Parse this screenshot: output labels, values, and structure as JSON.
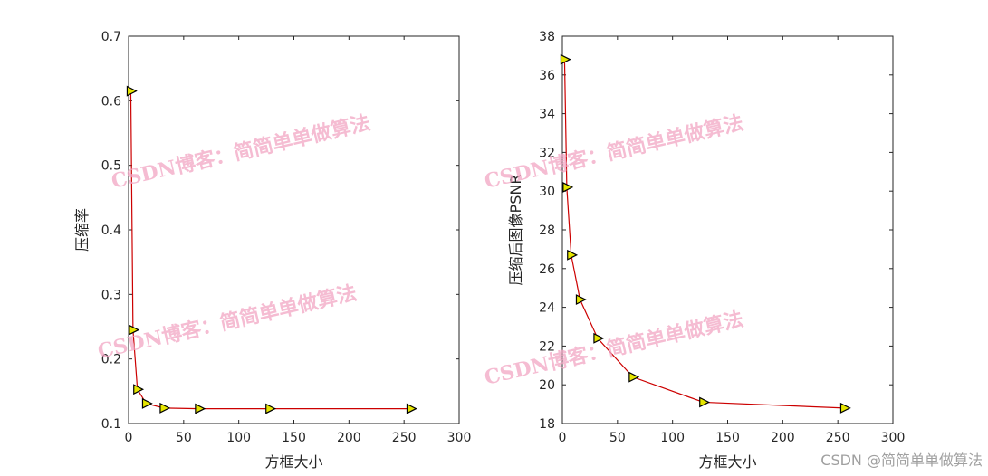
{
  "colors": {
    "line": "#cc0000",
    "marker_fill": "#e6e600",
    "marker_edge": "#000000",
    "watermark": "#f2a6c4",
    "axes": "#262626"
  },
  "watermark_text": "CSDN博客：简简单单做算法",
  "footer_text": "CSDN @简简单单做算法",
  "chart_data": [
    {
      "type": "line",
      "xlabel": "方框大小",
      "ylabel": "压缩率",
      "xlim": [
        0,
        300
      ],
      "ylim": [
        0.1,
        0.7
      ],
      "xticks": [
        0,
        50,
        100,
        150,
        200,
        250,
        300
      ],
      "yticks": [
        0.1,
        0.2,
        0.3,
        0.4,
        0.5,
        0.6,
        0.7
      ],
      "xtick_labels": [
        "0",
        "50",
        "100",
        "150",
        "200",
        "250",
        "300"
      ],
      "ytick_labels": [
        "0.1",
        "0.2",
        "0.3",
        "0.4",
        "0.5",
        "0.6",
        "0.7"
      ],
      "marker": "triangle-right",
      "grid": false,
      "x": [
        2,
        4,
        8,
        16,
        32,
        64,
        128,
        256
      ],
      "y": [
        0.615,
        0.245,
        0.153,
        0.131,
        0.124,
        0.123,
        0.123,
        0.123
      ]
    },
    {
      "type": "line",
      "xlabel": "方框大小",
      "ylabel": "压缩后图像PSNR",
      "xlim": [
        0,
        300
      ],
      "ylim": [
        18,
        38
      ],
      "xticks": [
        0,
        50,
        100,
        150,
        200,
        250,
        300
      ],
      "yticks": [
        18,
        20,
        22,
        24,
        26,
        28,
        30,
        32,
        34,
        36,
        38
      ],
      "xtick_labels": [
        "0",
        "50",
        "100",
        "150",
        "200",
        "250",
        "300"
      ],
      "ytick_labels": [
        "18",
        "20",
        "22",
        "24",
        "26",
        "28",
        "30",
        "32",
        "34",
        "36",
        "38"
      ],
      "marker": "triangle-right",
      "grid": false,
      "x": [
        2,
        4,
        8,
        16,
        32,
        64,
        128,
        256
      ],
      "y": [
        36.8,
        30.2,
        26.7,
        24.4,
        22.4,
        20.4,
        19.1,
        18.8
      ]
    }
  ]
}
